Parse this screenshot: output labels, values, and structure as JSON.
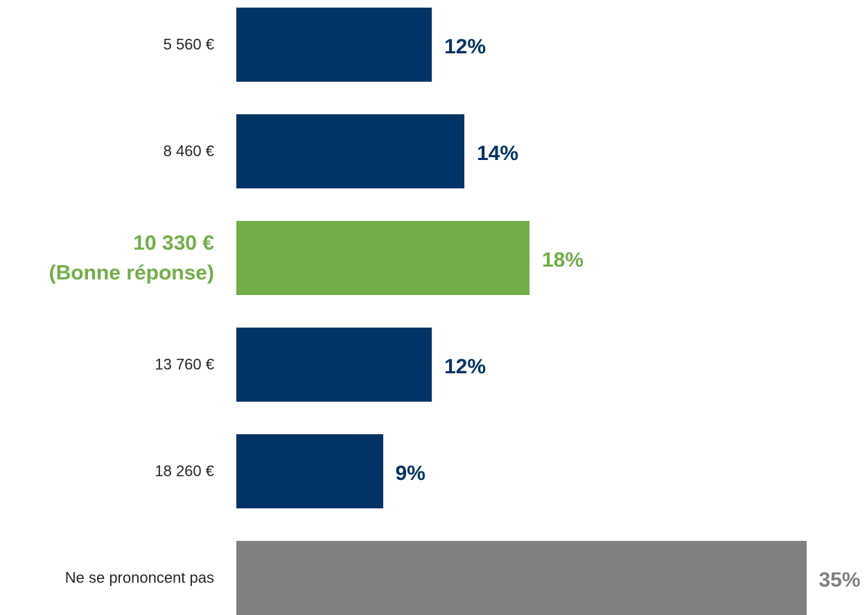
{
  "chart_data": {
    "type": "hbar",
    "categories": [
      "5 560 €",
      "8 460 €",
      "10 330 €\n(Bonne réponse)",
      "13 760 €",
      "18 260 €",
      "Ne se prononcent pas"
    ],
    "values": [
      12,
      14,
      18,
      12,
      9,
      35
    ],
    "value_labels": [
      "12%",
      "14%",
      "18%",
      "12%",
      "9%",
      "35%"
    ],
    "colors": [
      "#003366",
      "#003366",
      "#72ad48",
      "#003366",
      "#003366",
      "#808080"
    ]
  }
}
